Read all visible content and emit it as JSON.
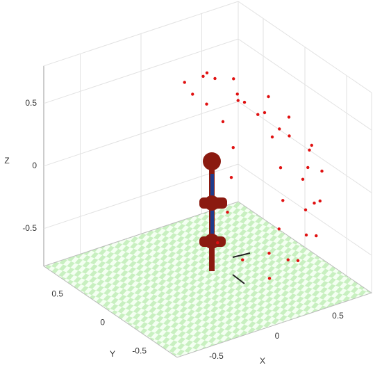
{
  "chart_data": {
    "type": "scatter3d",
    "xlabel": "X",
    "ylabel": "Y",
    "zlabel": "Z",
    "xlim": [
      -0.8,
      0.8
    ],
    "ylim": [
      -0.8,
      0.8
    ],
    "zlim": [
      -0.8,
      0.8
    ],
    "xticks": [
      -0.5,
      0,
      0.5
    ],
    "yticks": [
      -0.5,
      0,
      0.5
    ],
    "zticks": [
      -0.5,
      0,
      0.5
    ],
    "grid": true,
    "color": "#e01010",
    "x": [
      0.2,
      0.35,
      0.5,
      0.6,
      0.65,
      0.7,
      0.65,
      0.55,
      0.4,
      0.2,
      0.1,
      0.3,
      0.45,
      0.55,
      0.6,
      0.6,
      0.55,
      0.45,
      0.3,
      0.15,
      0.25,
      0.4,
      0.5,
      0.55,
      0.5,
      0.4,
      0.25,
      0.05,
      0.15,
      0.3,
      0.4,
      0.45,
      0.4,
      0.3,
      0.15,
      0.35,
      0.2,
      0.7,
      0.68,
      0.6
    ],
    "y": [
      0.3,
      0.2,
      0.0,
      -0.1,
      -0.3,
      -0.35,
      -0.4,
      -0.5,
      -0.5,
      -0.45,
      0.2,
      0.35,
      0.3,
      0.2,
      0.1,
      0.0,
      -0.1,
      -0.2,
      -0.3,
      -0.2,
      0.0,
      -0.1,
      -0.25,
      -0.4,
      -0.55,
      -0.6,
      -0.6,
      0.35,
      0.4,
      0.45,
      0.4,
      0.35,
      0.3,
      0.2,
      0.1,
      -0.35,
      -0.15,
      -0.2,
      -0.15,
      -0.3
    ],
    "z": [
      0.65,
      0.6,
      0.5,
      0.35,
      0.2,
      0.0,
      -0.2,
      -0.4,
      -0.55,
      -0.65,
      0.7,
      0.55,
      0.4,
      0.25,
      0.1,
      -0.1,
      -0.3,
      -0.45,
      -0.55,
      -0.6,
      0.55,
      0.45,
      0.3,
      0.1,
      -0.1,
      -0.3,
      -0.45,
      0.6,
      0.45,
      0.3,
      0.15,
      -0.05,
      -0.25,
      -0.45,
      -0.6,
      0.45,
      0.62,
      0.1,
      -0.15,
      -0.3
    ]
  }
}
